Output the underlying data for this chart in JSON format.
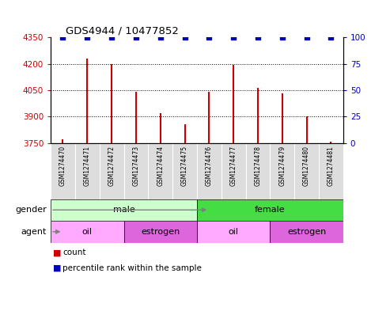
{
  "title": "GDS4944 / 10477852",
  "samples": [
    "GSM1274470",
    "GSM1274471",
    "GSM1274472",
    "GSM1274473",
    "GSM1274474",
    "GSM1274475",
    "GSM1274476",
    "GSM1274477",
    "GSM1274478",
    "GSM1274479",
    "GSM1274480",
    "GSM1274481"
  ],
  "counts": [
    3770,
    4230,
    4200,
    4040,
    3920,
    3855,
    4040,
    4195,
    4065,
    4030,
    3900,
    3760
  ],
  "percentile": [
    100,
    100,
    100,
    100,
    100,
    100,
    100,
    100,
    100,
    100,
    100,
    100
  ],
  "ylim_left": [
    3750,
    4350
  ],
  "yticks_left": [
    3750,
    3900,
    4050,
    4200,
    4350
  ],
  "ylim_right": [
    0,
    100
  ],
  "yticks_right": [
    0,
    25,
    50,
    75,
    100
  ],
  "bar_color": "#cc0000",
  "dot_color": "#0000bb",
  "gender_groups": [
    {
      "label": "male",
      "start": 0,
      "end": 6,
      "color": "#ccffcc"
    },
    {
      "label": "female",
      "start": 6,
      "end": 12,
      "color": "#44dd44"
    }
  ],
  "agent_groups": [
    {
      "label": "oil",
      "start": 0,
      "end": 3,
      "color": "#ffaaff"
    },
    {
      "label": "estrogen",
      "start": 3,
      "end": 6,
      "color": "#dd66dd"
    },
    {
      "label": "oil",
      "start": 6,
      "end": 9,
      "color": "#ffaaff"
    },
    {
      "label": "estrogen",
      "start": 9,
      "end": 12,
      "color": "#dd66dd"
    }
  ],
  "legend_count_color": "#cc0000",
  "legend_dot_color": "#0000bb",
  "axis_label_color_left": "#cc0000",
  "axis_label_color_right": "#0000bb",
  "sample_bg_color": "#dddddd",
  "grid_color": "#000000"
}
